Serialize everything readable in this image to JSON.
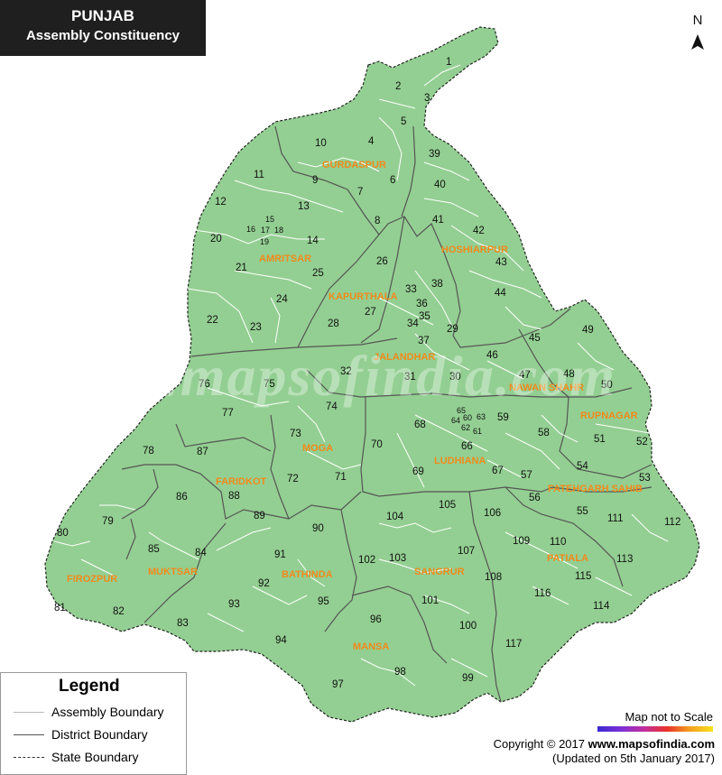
{
  "header": {
    "title": "PUNJAB",
    "subtitle": "Assembly Constituency"
  },
  "north_label": "N",
  "legend": {
    "title": "Legend",
    "items": [
      {
        "label": "Assembly Boundary",
        "style": "solid-white"
      },
      {
        "label": "District Boundary",
        "style": "solid-dark"
      },
      {
        "label": "State Boundary",
        "style": "dashed-dark"
      }
    ]
  },
  "scale_note": "Map not to Scale",
  "copyright": {
    "prefix": "Copyright © 2017 ",
    "site": "www.mapsofindia.com",
    "updated": "(Updated on 5th January 2017)"
  },
  "watermark": "www.mapsofindia.com",
  "colors": {
    "land": "#93cf92",
    "district_line": "#555555",
    "assembly_line": "#ffffff",
    "district_label": "#f08a1c"
  },
  "districts": [
    "GURDASPUR",
    "AMRITSAR",
    "HOSHIARPUR",
    "KAPURTHALA",
    "JALANDHAR",
    "NAWAN SHAHR",
    "RUPNAGAR",
    "MOGA",
    "LUDHIANA",
    "FARIDKOT",
    "FATEHGARH SAHIB",
    "FIROZPUR",
    "MUKTSAR",
    "BATHINDA",
    "SANGRUR",
    "PATIALA",
    "MANSA"
  ],
  "constituencies": [
    "1",
    "2",
    "3",
    "4",
    "5",
    "6",
    "7",
    "8",
    "9",
    "10",
    "11",
    "12",
    "13",
    "14",
    "15",
    "16",
    "17",
    "18",
    "19",
    "20",
    "21",
    "22",
    "23",
    "24",
    "25",
    "26",
    "27",
    "28",
    "29",
    "30",
    "31",
    "32",
    "33",
    "34",
    "35",
    "36",
    "37",
    "38",
    "39",
    "40",
    "41",
    "42",
    "43",
    "44",
    "45",
    "46",
    "47",
    "48",
    "49",
    "50",
    "51",
    "52",
    "53",
    "54",
    "55",
    "56",
    "57",
    "58",
    "59",
    "60",
    "61",
    "62",
    "63",
    "64",
    "65",
    "66",
    "67",
    "68",
    "69",
    "70",
    "71",
    "72",
    "73",
    "74",
    "75",
    "76",
    "77",
    "78",
    "79",
    "80",
    "81",
    "82",
    "83",
    "84",
    "85",
    "86",
    "87",
    "88",
    "89",
    "90",
    "91",
    "92",
    "93",
    "94",
    "95",
    "96",
    "97",
    "98",
    "99",
    "100",
    "101",
    "102",
    "103",
    "104",
    "105",
    "106",
    "107",
    "108",
    "109",
    "110",
    "111",
    "112",
    "113",
    "114",
    "115",
    "116",
    "117"
  ]
}
